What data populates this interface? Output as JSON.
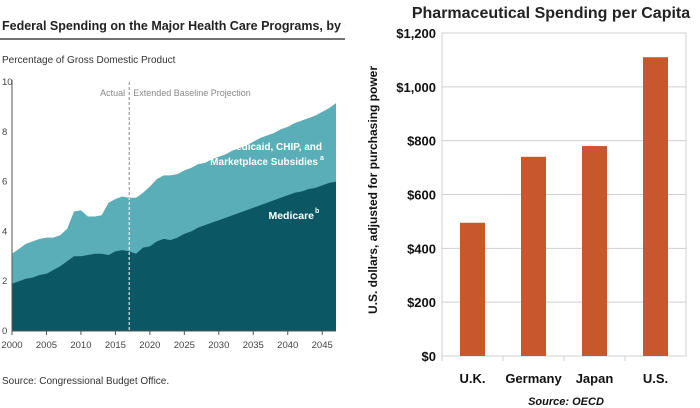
{
  "chart_data": [
    {
      "type": "area",
      "title": "Federal Spending on the Major Health Care Programs, by Category",
      "subtitle": "Percentage of Gross Domestic Product",
      "source": "Source: Congressional Budget Office.",
      "divider_labels": [
        "Actual",
        "Extended Baseline Projection"
      ],
      "divider_year": 2017,
      "stacked": true,
      "xlim": [
        2000,
        2047
      ],
      "ylim": [
        0,
        10
      ],
      "x_ticks": [
        "2000",
        "2005",
        "2010",
        "2015",
        "2020",
        "2025",
        "2030",
        "2035",
        "2040",
        "2045"
      ],
      "y_ticks": [
        "0",
        "2",
        "4",
        "6",
        "8",
        "10"
      ],
      "colors": {
        "lower": "#0c5764",
        "upper": "#5aaeb8",
        "axis": "#555555"
      },
      "x": [
        2000,
        2001,
        2002,
        2003,
        2004,
        2005,
        2006,
        2007,
        2008,
        2009,
        2010,
        2011,
        2012,
        2013,
        2014,
        2015,
        2016,
        2017,
        2018,
        2019,
        2020,
        2021,
        2022,
        2023,
        2024,
        2025,
        2026,
        2027,
        2028,
        2029,
        2030,
        2031,
        2032,
        2033,
        2034,
        2035,
        2036,
        2037,
        2038,
        2039,
        2040,
        2041,
        2042,
        2043,
        2044,
        2045,
        2046,
        2047
      ],
      "series": [
        {
          "name": "Medicare",
          "label": "Medicare",
          "superscript": "b",
          "values": [
            1.9,
            2.0,
            2.1,
            2.15,
            2.25,
            2.3,
            2.45,
            2.6,
            2.8,
            3.0,
            3.0,
            3.05,
            3.1,
            3.1,
            3.05,
            3.2,
            3.25,
            3.2,
            3.1,
            3.35,
            3.4,
            3.6,
            3.7,
            3.65,
            3.75,
            3.9,
            4.0,
            4.15,
            4.25,
            4.35,
            4.45,
            4.55,
            4.65,
            4.75,
            4.85,
            4.95,
            5.05,
            5.15,
            5.25,
            5.35,
            5.45,
            5.55,
            5.6,
            5.7,
            5.75,
            5.85,
            5.95,
            6.0
          ]
        },
        {
          "name": "Medicaid, CHIP, and Marketplace Subsidies",
          "label_lines": [
            "Medicaid, CHIP, and",
            "Marketplace Subsidies"
          ],
          "superscript": "a",
          "values": [
            1.2,
            1.3,
            1.4,
            1.45,
            1.45,
            1.45,
            1.3,
            1.25,
            1.3,
            1.8,
            1.85,
            1.55,
            1.5,
            1.55,
            2.1,
            2.1,
            2.15,
            2.15,
            2.25,
            2.2,
            2.4,
            2.5,
            2.55,
            2.6,
            2.55,
            2.55,
            2.55,
            2.55,
            2.5,
            2.55,
            2.55,
            2.55,
            2.6,
            2.6,
            2.6,
            2.65,
            2.7,
            2.7,
            2.7,
            2.75,
            2.75,
            2.8,
            2.85,
            2.85,
            2.9,
            2.95,
            3.0,
            3.15
          ]
        }
      ]
    },
    {
      "type": "bar",
      "title": "Pharmaceutical Spending per Capita",
      "ylabel": "U.S. dollars, adjusted for purchasing power",
      "source": "Source: OECD",
      "categories": [
        "U.K.",
        "Germany",
        "Japan",
        "U.S."
      ],
      "values": [
        495,
        740,
        780,
        1110
      ],
      "ylim": [
        0,
        1200
      ],
      "y_ticks": [
        "$0",
        "$200",
        "$400",
        "$600",
        "$800",
        "$1,000",
        "$1,200"
      ],
      "colors": {
        "bar": "#c8572b",
        "grid": "#d0d0d0"
      }
    }
  ]
}
